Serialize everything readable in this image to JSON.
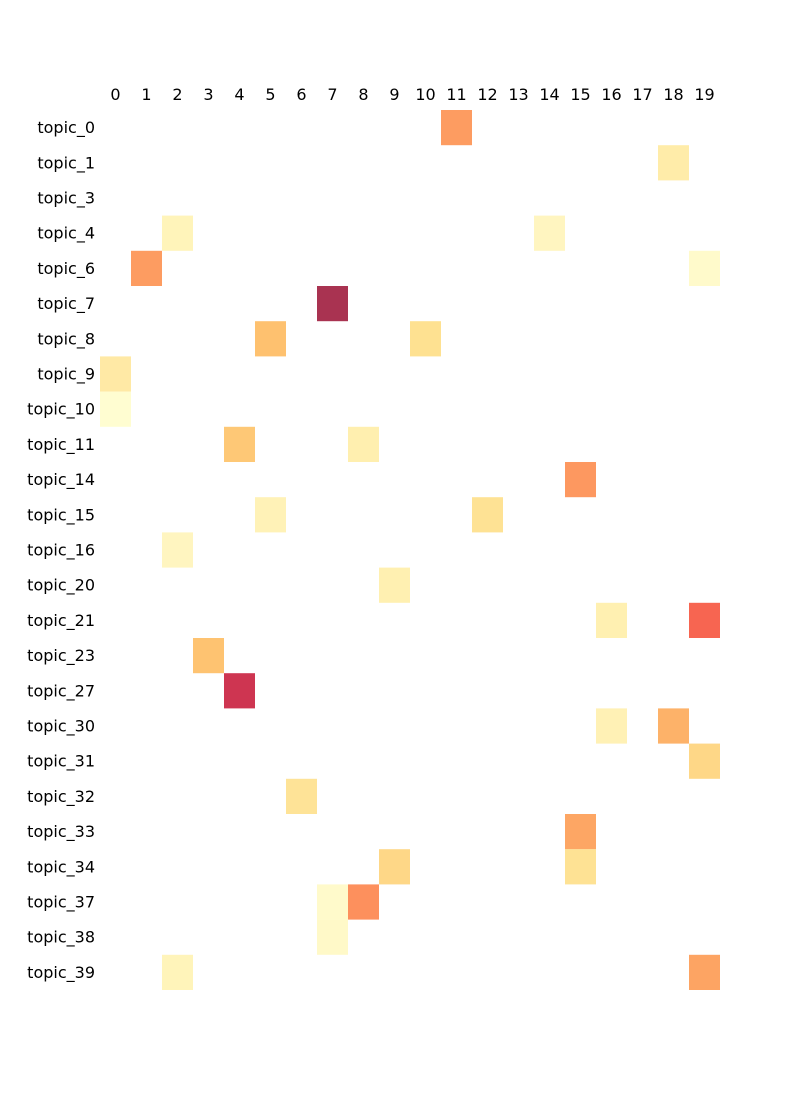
{
  "chart_data": {
    "type": "heatmap",
    "title": "",
    "xlabel": "",
    "ylabel": "",
    "columns": [
      "0",
      "1",
      "2",
      "3",
      "4",
      "5",
      "6",
      "7",
      "8",
      "9",
      "10",
      "11",
      "12",
      "13",
      "14",
      "15",
      "16",
      "17",
      "18",
      "19"
    ],
    "rows": [
      "topic_0",
      "topic_1",
      "topic_3",
      "topic_4",
      "topic_6",
      "topic_7",
      "topic_8",
      "topic_9",
      "topic_10",
      "topic_11",
      "topic_14",
      "topic_15",
      "topic_16",
      "topic_20",
      "topic_21",
      "topic_23",
      "topic_27",
      "topic_30",
      "topic_31",
      "topic_32",
      "topic_33",
      "topic_34",
      "topic_37",
      "topic_38",
      "topic_39"
    ],
    "vmin": 0,
    "vmax": 1,
    "colormap": [
      "#ffffcc",
      "#ffeda0",
      "#fed976",
      "#feb24c",
      "#fd8d3c",
      "#fc4e2a",
      "#e31a1c",
      "#bd0026",
      "#800026"
    ],
    "cell_opacity": 0.8,
    "grid": false,
    "colorbar": false,
    "cells": [
      {
        "row": "topic_0",
        "col": "11",
        "value": 0.52
      },
      {
        "row": "topic_1",
        "col": "18",
        "value": 0.16
      },
      {
        "row": "topic_4",
        "col": "2",
        "value": 0.1
      },
      {
        "row": "topic_4",
        "col": "14",
        "value": 0.08
      },
      {
        "row": "topic_6",
        "col": "1",
        "value": 0.52
      },
      {
        "row": "topic_6",
        "col": "19",
        "value": 0.04
      },
      {
        "row": "topic_7",
        "col": "7",
        "value": 0.96
      },
      {
        "row": "topic_8",
        "col": "5",
        "value": 0.38
      },
      {
        "row": "topic_8",
        "col": "10",
        "value": 0.25
      },
      {
        "row": "topic_9",
        "col": "0",
        "value": 0.18
      },
      {
        "row": "topic_10",
        "col": "0",
        "value": 0.02
      },
      {
        "row": "topic_11",
        "col": "4",
        "value": 0.35
      },
      {
        "row": "topic_11",
        "col": "8",
        "value": 0.14
      },
      {
        "row": "topic_14",
        "col": "15",
        "value": 0.53
      },
      {
        "row": "topic_15",
        "col": "5",
        "value": 0.11
      },
      {
        "row": "topic_15",
        "col": "12",
        "value": 0.24
      },
      {
        "row": "topic_16",
        "col": "2",
        "value": 0.08
      },
      {
        "row": "topic_20",
        "col": "9",
        "value": 0.13
      },
      {
        "row": "topic_21",
        "col": "16",
        "value": 0.13
      },
      {
        "row": "topic_21",
        "col": "19",
        "value": 0.66
      },
      {
        "row": "topic_23",
        "col": "3",
        "value": 0.37
      },
      {
        "row": "topic_27",
        "col": "4",
        "value": 0.86
      },
      {
        "row": "topic_30",
        "col": "16",
        "value": 0.12
      },
      {
        "row": "topic_30",
        "col": "18",
        "value": 0.44
      },
      {
        "row": "topic_31",
        "col": "19",
        "value": 0.29
      },
      {
        "row": "topic_32",
        "col": "6",
        "value": 0.23
      },
      {
        "row": "topic_33",
        "col": "15",
        "value": 0.49
      },
      {
        "row": "topic_34",
        "col": "9",
        "value": 0.29
      },
      {
        "row": "topic_34",
        "col": "15",
        "value": 0.24
      },
      {
        "row": "topic_37",
        "col": "7",
        "value": 0.04
      },
      {
        "row": "topic_37",
        "col": "8",
        "value": 0.55
      },
      {
        "row": "topic_38",
        "col": "7",
        "value": 0.05
      },
      {
        "row": "topic_39",
        "col": "2",
        "value": 0.1
      },
      {
        "row": "topic_39",
        "col": "19",
        "value": 0.5
      }
    ]
  }
}
